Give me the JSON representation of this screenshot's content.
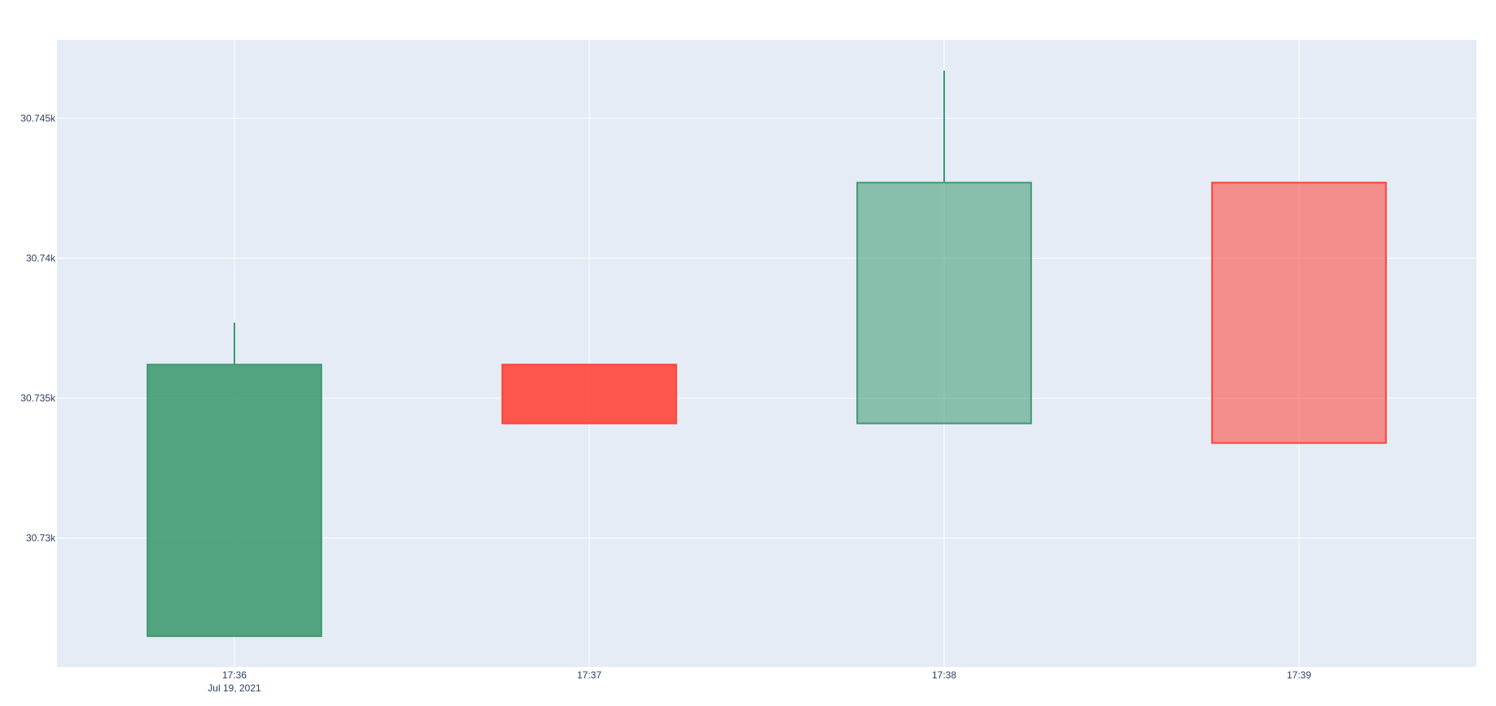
{
  "chart_data": {
    "type": "candlestick",
    "x": [
      "17:36",
      "17:37",
      "17:38",
      "17:39"
    ],
    "x_date_label": "Jul 19, 2021",
    "candles": [
      {
        "x": "17:36",
        "open": 30726.5,
        "high": 30737.7,
        "low": 30726.5,
        "close": 30736.2,
        "direction": "up"
      },
      {
        "x": "17:37",
        "open": 30736.2,
        "high": 30736.2,
        "low": 30734.1,
        "close": 30734.1,
        "direction": "down"
      },
      {
        "x": "17:38",
        "open": 30734.1,
        "high": 30746.7,
        "low": 30734.1,
        "close": 30742.7,
        "direction": "up"
      },
      {
        "x": "17:39",
        "open": 30742.7,
        "high": 30742.7,
        "low": 30733.4,
        "close": 30733.4,
        "direction": "down"
      }
    ],
    "ylim": [
      30725.4,
      30747.8
    ],
    "y_ticks": [
      {
        "value": 30730,
        "label": "30.73k"
      },
      {
        "value": 30735,
        "label": "30.735k"
      },
      {
        "value": 30740,
        "label": "30.74k"
      },
      {
        "value": 30745,
        "label": "30.745k"
      }
    ],
    "grid": true,
    "colors": {
      "increasing": "#3d9970",
      "decreasing": "#ff4136",
      "plot_bg": "#e5ecf6",
      "grid": "#ffffff",
      "tick_text": "#2a3f5f"
    }
  }
}
